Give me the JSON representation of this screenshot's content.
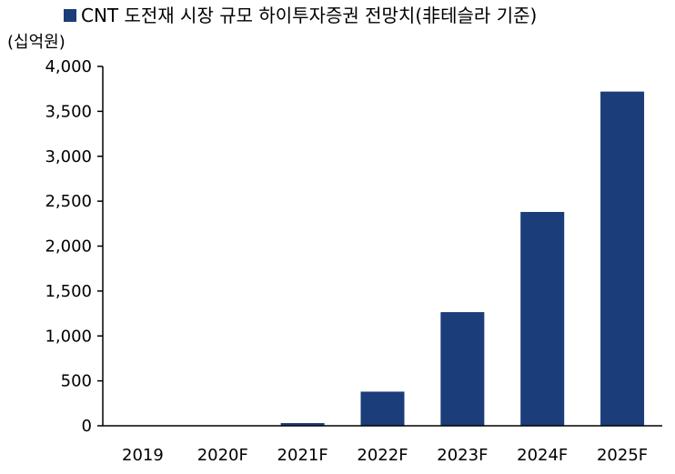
{
  "chart_data": {
    "type": "bar",
    "legend": {
      "position": "top-left",
      "entries": [
        "CNT 도전재 시장 규모 하이투자증권 전망치(非테슬라 기준)"
      ]
    },
    "unit_label": "(십억원)",
    "categories": [
      "2019",
      "2020F",
      "2021F",
      "2022F",
      "2023F",
      "2024F",
      "2025F"
    ],
    "series": [
      {
        "name": "CNT 도전재 시장 규모 하이투자증권 전망치(非테슬라 기준)",
        "values": [
          0,
          3,
          30,
          380,
          1265,
          2380,
          3720
        ],
        "color": "#1b3d7a"
      }
    ],
    "ylim": [
      0,
      4000
    ],
    "y_ticks": [
      0,
      500,
      1000,
      1500,
      2000,
      2500,
      3000,
      3500,
      4000
    ],
    "y_tick_labels": [
      "0",
      "500",
      "1,000",
      "1,500",
      "2,000",
      "2,500",
      "3,000",
      "3,500",
      "4,000"
    ],
    "grid": false
  }
}
